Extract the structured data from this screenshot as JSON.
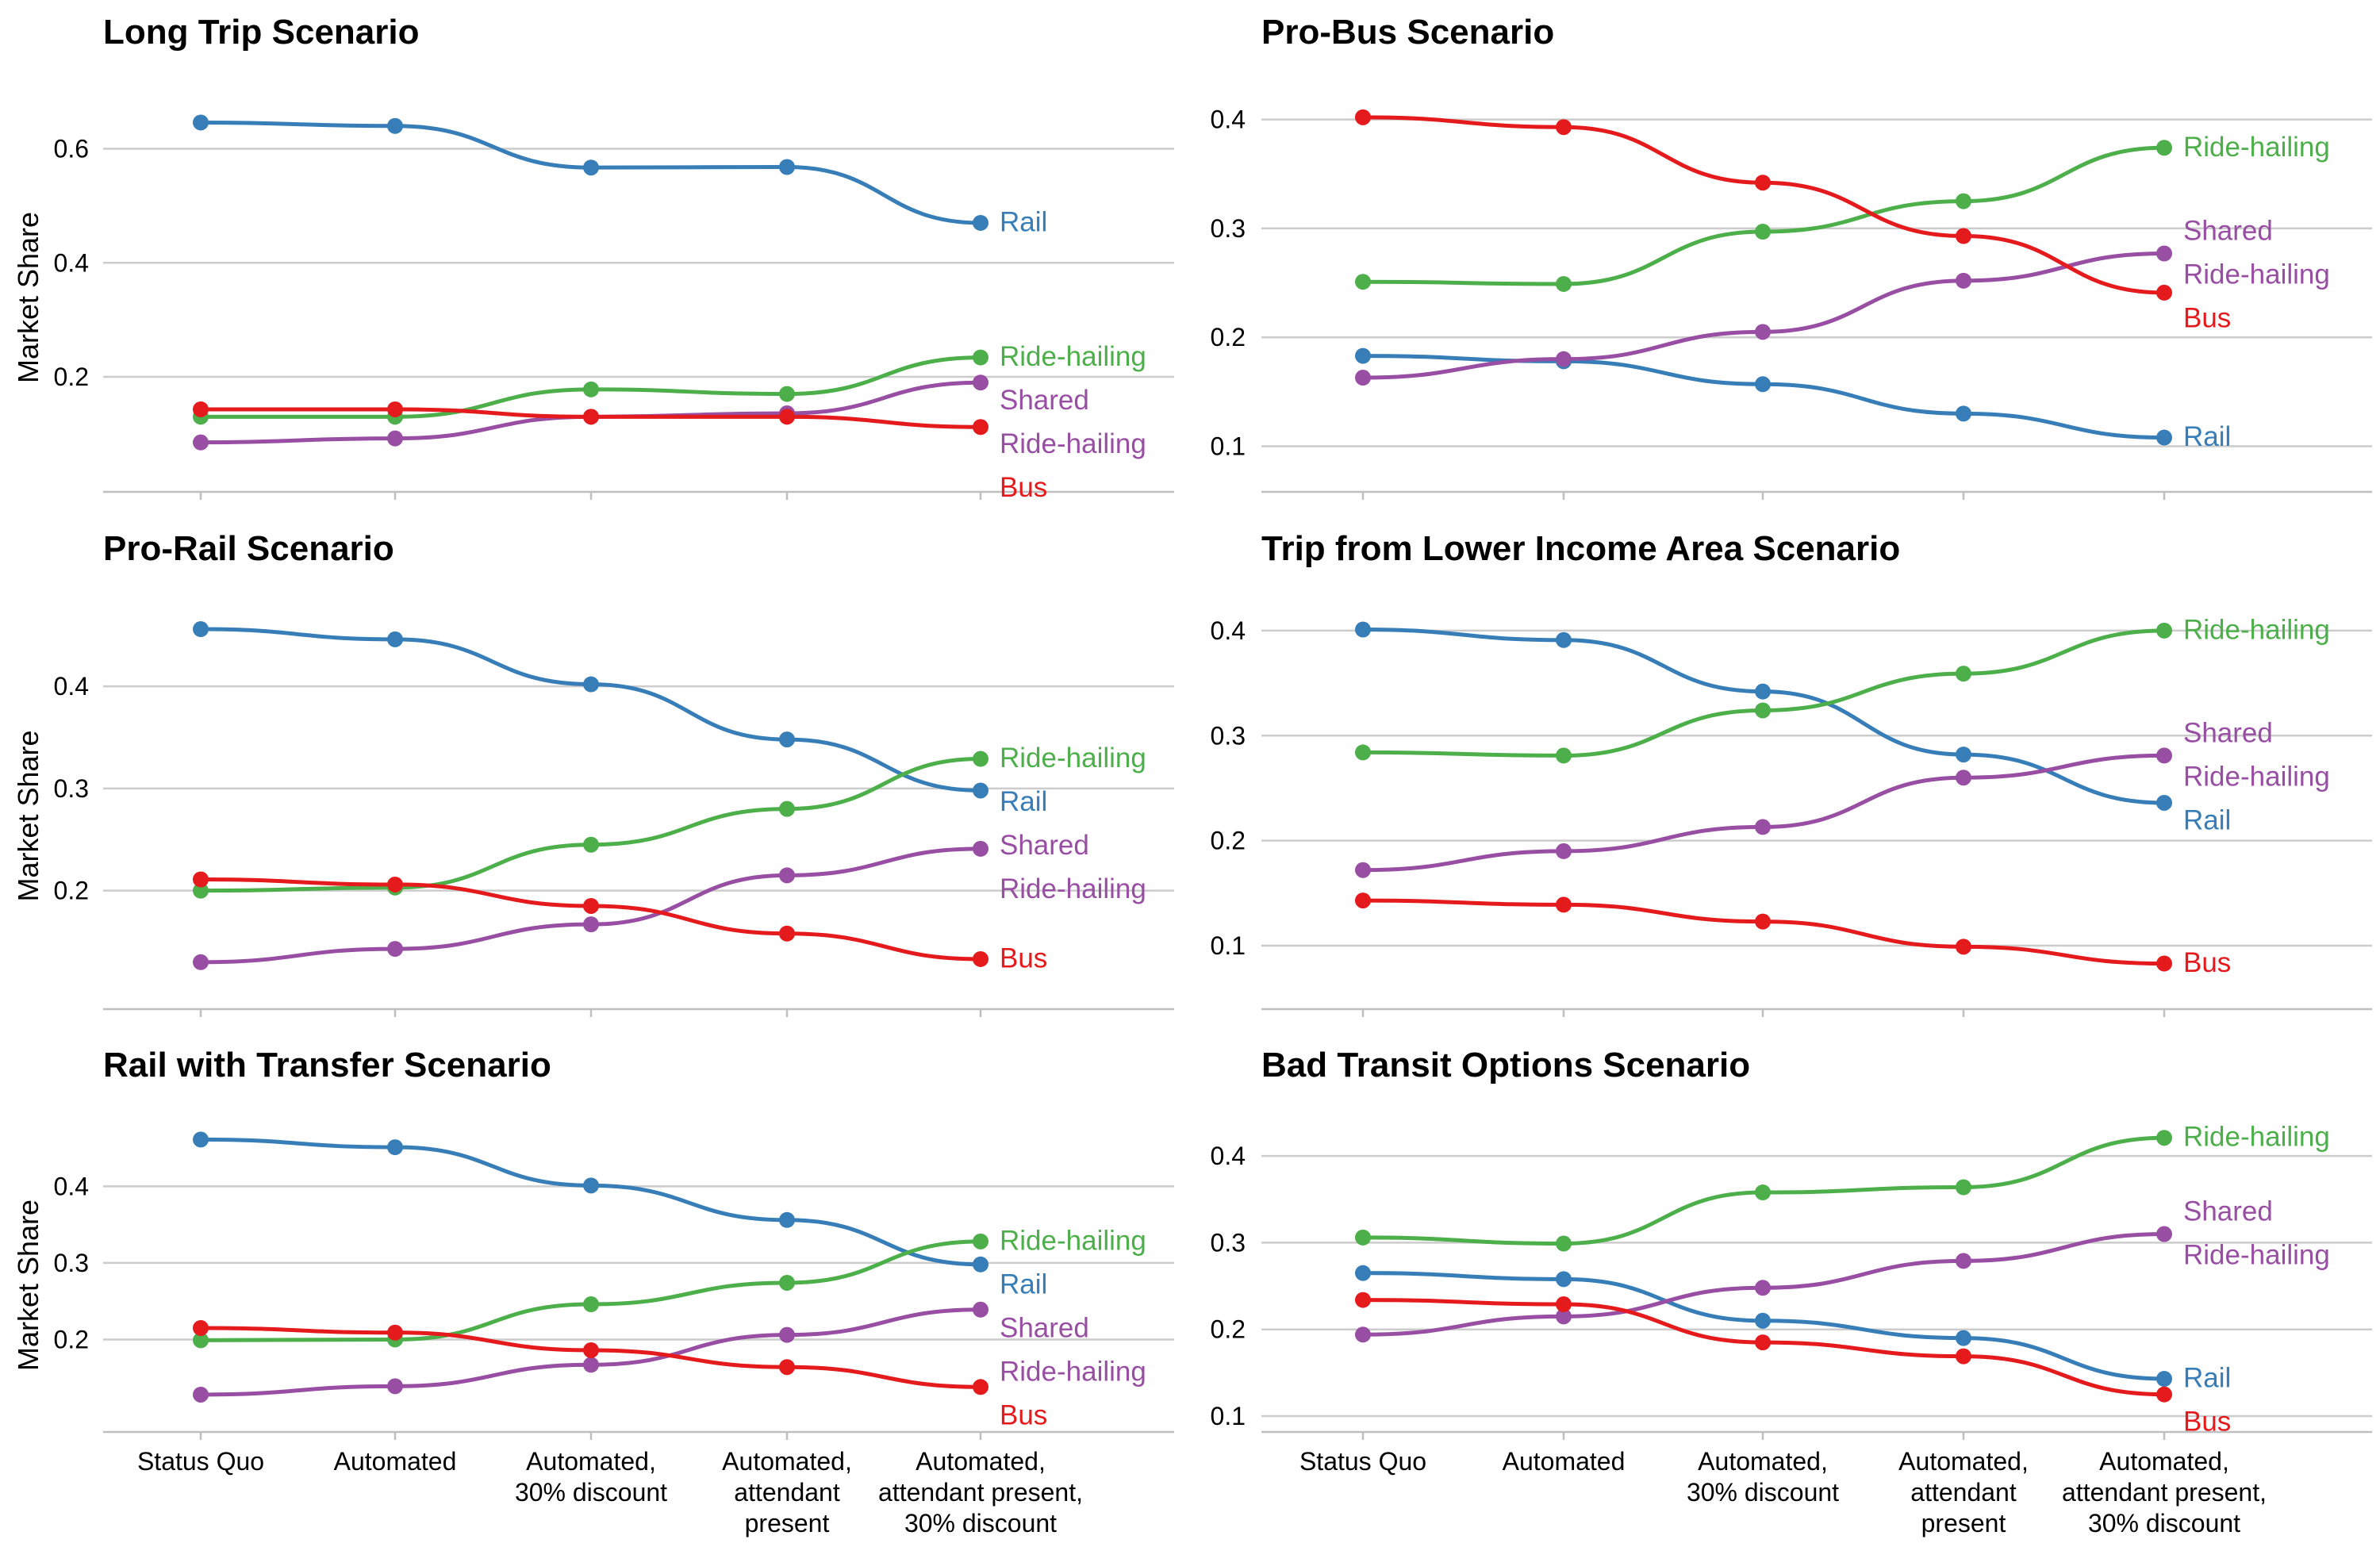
{
  "colors": {
    "Rail": "#377eb8",
    "Ride-hailing": "#4daf4a",
    "Shared Ride-hailing": "#984ea3",
    "Bus": "#e41a1c"
  },
  "chart_data": [
    {
      "type": "line",
      "title": "Long Trip Scenario",
      "ylabel": "Market Share",
      "xlabel": "",
      "categories": [
        "Status Quo",
        "Automated",
        "Automated, 30% discount",
        "Automated, attendant present",
        "Automated, attendant present, 30% discount"
      ],
      "yticks": [
        "0.2",
        "0.4",
        "0.6"
      ],
      "ylim": [
        0.04,
        0.68
      ],
      "show_xticks": false,
      "series": [
        {
          "key": "Rail",
          "values": [
            0.646,
            0.64,
            0.567,
            0.568,
            0.47
          ],
          "labels": [
            "Rail"
          ]
        },
        {
          "key": "Ride-hailing",
          "values": [
            0.13,
            0.13,
            0.178,
            0.17,
            0.234
          ],
          "labels": [
            "Ride-hailing"
          ]
        },
        {
          "key": "Shared Ride-hailing",
          "values": [
            0.085,
            0.092,
            0.13,
            0.136,
            0.19
          ],
          "labels": [
            "Shared",
            "Ride-hailing"
          ]
        },
        {
          "key": "Bus",
          "values": [
            0.143,
            0.143,
            0.13,
            0.13,
            0.112
          ],
          "labels": [
            "Bus"
          ]
        }
      ]
    },
    {
      "type": "line",
      "title": "Pro-Bus Scenario",
      "ylabel": "",
      "xlabel": "",
      "categories": [
        "Status Quo",
        "Automated",
        "Automated, 30% discount",
        "Automated, attendant present",
        "Automated, attendant present, 30% discount"
      ],
      "yticks": [
        "0.1",
        "0.2",
        "0.3",
        "0.4"
      ],
      "ylim": [
        0.08,
        0.415
      ],
      "show_xticks": false,
      "series": [
        {
          "key": "Rail",
          "values": [
            0.183,
            0.178,
            0.157,
            0.13,
            0.108
          ],
          "labels": [
            "Rail"
          ]
        },
        {
          "key": "Ride-hailing",
          "values": [
            0.251,
            0.249,
            0.297,
            0.325,
            0.374
          ],
          "labels": [
            "Ride-hailing"
          ]
        },
        {
          "key": "Shared Ride-hailing",
          "values": [
            0.163,
            0.18,
            0.205,
            0.252,
            0.277
          ],
          "labels": [
            "Shared",
            "Ride-hailing"
          ]
        },
        {
          "key": "Bus",
          "values": [
            0.402,
            0.393,
            0.342,
            0.293,
            0.241
          ],
          "labels": [
            "Bus"
          ]
        }
      ]
    },
    {
      "type": "line",
      "title": "Pro-Rail Scenario",
      "ylabel": "Market Share",
      "xlabel": "",
      "categories": [
        "Status Quo",
        "Automated",
        "Automated, 30% discount",
        "Automated, attendant present",
        "Automated, attendant present, 30% discount"
      ],
      "yticks": [
        "0.2",
        "0.3",
        "0.4"
      ],
      "ylim": [
        0.105,
        0.47
      ],
      "show_xticks": false,
      "series": [
        {
          "key": "Rail",
          "values": [
            0.456,
            0.446,
            0.402,
            0.348,
            0.298
          ],
          "labels": [
            "Rail"
          ]
        },
        {
          "key": "Ride-hailing",
          "values": [
            0.2,
            0.203,
            0.245,
            0.28,
            0.329
          ],
          "labels": [
            "Ride-hailing"
          ]
        },
        {
          "key": "Shared Ride-hailing",
          "values": [
            0.13,
            0.143,
            0.167,
            0.215,
            0.241
          ],
          "labels": [
            "Shared",
            "Ride-hailing"
          ]
        },
        {
          "key": "Bus",
          "values": [
            0.211,
            0.206,
            0.185,
            0.158,
            0.133
          ],
          "labels": [
            "Bus"
          ]
        }
      ]
    },
    {
      "type": "line",
      "title": "Trip from Lower Income Area Scenario",
      "ylabel": "",
      "xlabel": "",
      "categories": [
        "Status Quo",
        "Automated",
        "Automated, 30% discount",
        "Automated, attendant present",
        "Automated, attendant present, 30% discount"
      ],
      "yticks": [
        "0.1",
        "0.2",
        "0.3",
        "0.4"
      ],
      "ylim": [
        0.06,
        0.415
      ],
      "show_xticks": false,
      "series": [
        {
          "key": "Rail",
          "values": [
            0.401,
            0.391,
            0.342,
            0.282,
            0.236
          ],
          "labels": [
            "Rail"
          ]
        },
        {
          "key": "Ride-hailing",
          "values": [
            0.284,
            0.281,
            0.324,
            0.359,
            0.4
          ],
          "labels": [
            "Ride-hailing"
          ]
        },
        {
          "key": "Shared Ride-hailing",
          "values": [
            0.172,
            0.19,
            0.213,
            0.26,
            0.281
          ],
          "labels": [
            "Shared",
            "Ride-hailing"
          ]
        },
        {
          "key": "Bus",
          "values": [
            0.143,
            0.139,
            0.123,
            0.099,
            0.083
          ],
          "labels": [
            "Bus"
          ]
        }
      ]
    },
    {
      "type": "line",
      "title": "Rail with Transfer Scenario",
      "ylabel": "Market Share",
      "xlabel": "",
      "categories": [
        "Status Quo",
        "Automated",
        "Automated, 30% discount",
        "Automated, attendant present",
        "Automated, attendant present, 30% discount"
      ],
      "yticks": [
        "0.2",
        "0.3",
        "0.4"
      ],
      "ylim": [
        0.1,
        0.478
      ],
      "show_xticks": true,
      "series": [
        {
          "key": "Rail",
          "values": [
            0.461,
            0.451,
            0.401,
            0.356,
            0.298
          ],
          "labels": [
            "Rail"
          ]
        },
        {
          "key": "Ride-hailing",
          "values": [
            0.199,
            0.2,
            0.246,
            0.274,
            0.328
          ],
          "labels": [
            "Ride-hailing"
          ]
        },
        {
          "key": "Shared Ride-hailing",
          "values": [
            0.128,
            0.139,
            0.167,
            0.206,
            0.239
          ],
          "labels": [
            "Shared",
            "Ride-hailing"
          ]
        },
        {
          "key": "Bus",
          "values": [
            0.215,
            0.209,
            0.186,
            0.164,
            0.138
          ],
          "labels": [
            "Bus"
          ]
        }
      ]
    },
    {
      "type": "line",
      "title": "Bad Transit Options Scenario",
      "ylabel": "",
      "xlabel": "",
      "categories": [
        "Status Quo",
        "Automated",
        "Automated, 30% discount",
        "Automated, attendant present",
        "Automated, attendant present, 30% discount"
      ],
      "yticks": [
        "0.1",
        "0.2",
        "0.3",
        "0.4"
      ],
      "ylim": [
        0.1,
        0.434
      ],
      "show_xticks": true,
      "series": [
        {
          "key": "Rail",
          "values": [
            0.265,
            0.258,
            0.21,
            0.19,
            0.143
          ],
          "labels": [
            "Rail"
          ]
        },
        {
          "key": "Ride-hailing",
          "values": [
            0.306,
            0.299,
            0.358,
            0.364,
            0.421
          ],
          "labels": [
            "Ride-hailing"
          ]
        },
        {
          "key": "Shared Ride-hailing",
          "values": [
            0.194,
            0.215,
            0.248,
            0.279,
            0.31
          ],
          "labels": [
            "Shared",
            "Ride-hailing"
          ]
        },
        {
          "key": "Bus",
          "values": [
            0.234,
            0.229,
            0.185,
            0.169,
            0.125
          ],
          "labels": [
            "Bus"
          ]
        }
      ]
    }
  ]
}
